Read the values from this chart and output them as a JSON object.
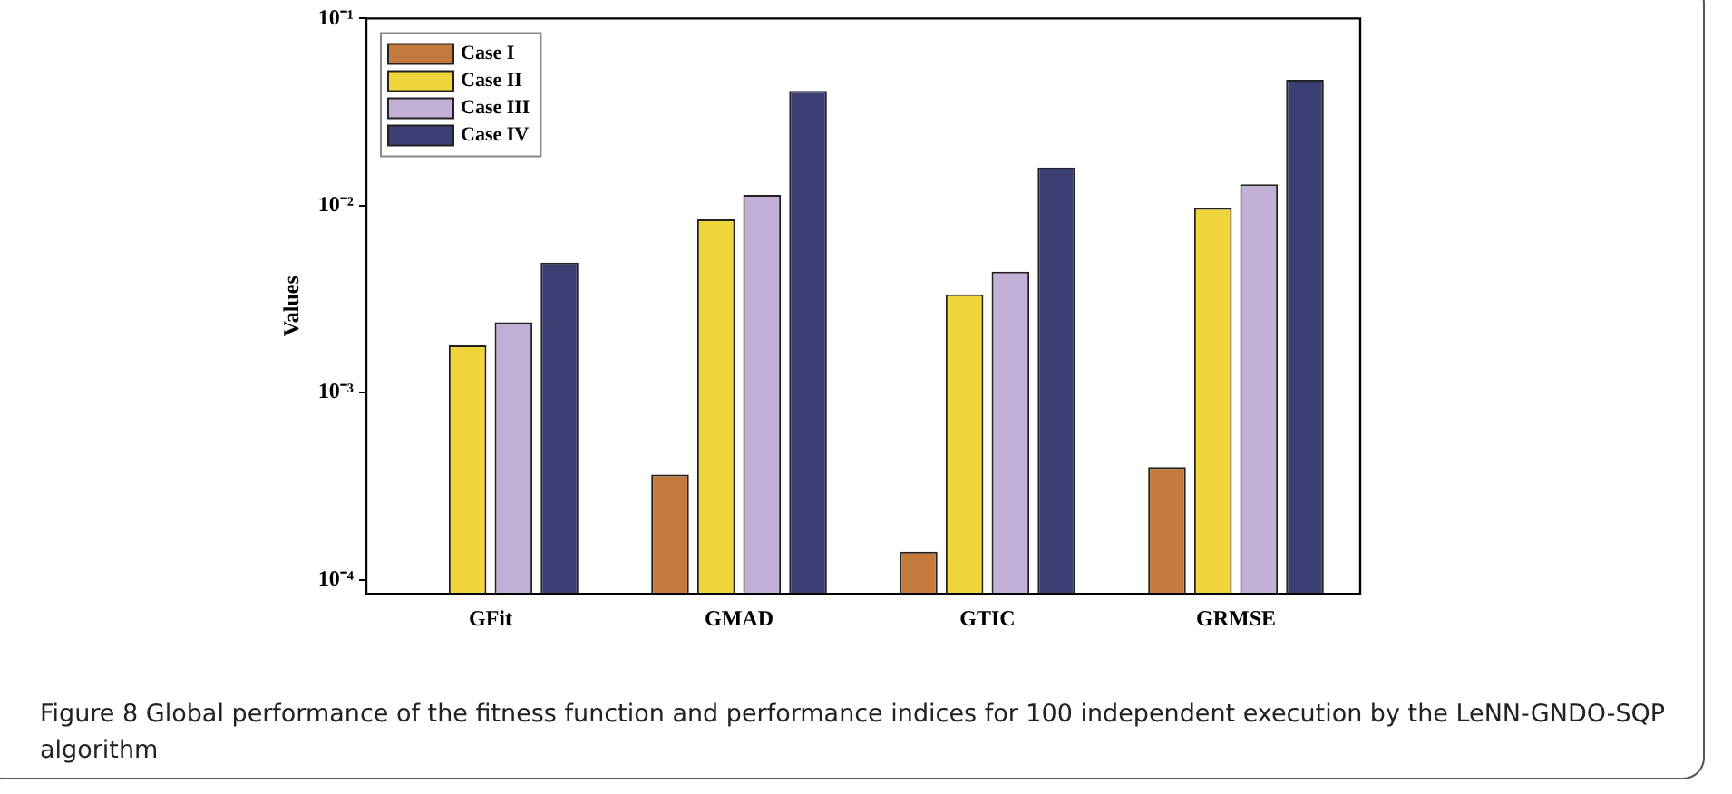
{
  "chart_data": {
    "type": "bar",
    "ylabel": "Values",
    "categories": [
      "GFit",
      "GMAD",
      "GTIC",
      "GRMSE"
    ],
    "series": [
      {
        "name": "Case I",
        "color": "#c47a3c",
        "values": [
          null,
          0.000365,
          0.000141,
          0.0004
        ]
      },
      {
        "name": "Case II",
        "color": "#f0d43c",
        "values": [
          0.00179,
          0.00845,
          0.00335,
          0.0097
        ]
      },
      {
        "name": "Case III",
        "color": "#c3b0d6",
        "values": [
          0.00238,
          0.0114,
          0.00443,
          0.013
        ]
      },
      {
        "name": "Case IV",
        "color": "#3c3f74",
        "values": [
          0.00496,
          0.041,
          0.016,
          0.047
        ]
      }
    ],
    "log": "y",
    "ylim": [
      8.4e-05,
      0.1
    ],
    "yticks": [
      {
        "value": 0.0001,
        "label": "10⁻⁴"
      },
      {
        "value": 0.001,
        "label": "10⁻³"
      },
      {
        "value": 0.01,
        "label": "10⁻²"
      },
      {
        "value": 0.1,
        "label": "10⁻¹"
      }
    ],
    "grid": false,
    "legend": "top left",
    "annotations": [
      "Figure 8  Global performance of the fitness function and performance indices for 100 independent execution by the LeNN-GNDO-SQP algorithm"
    ]
  }
}
